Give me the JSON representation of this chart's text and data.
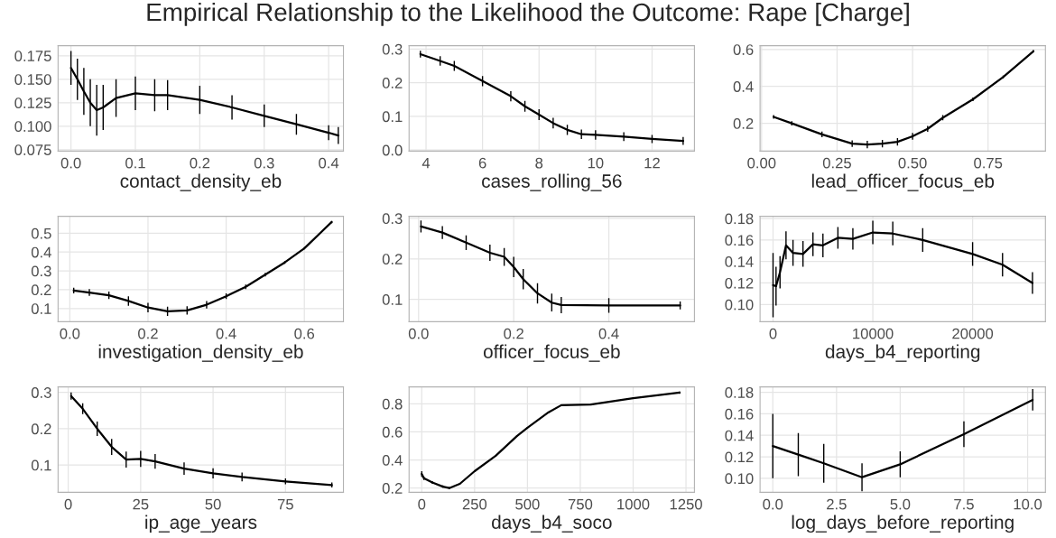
{
  "chart_data": [
    {
      "type": "line",
      "title": "Empirical Relationship to the Likelihood the Outcome: Rape [Charge]",
      "xlabel": "contact_density_eb",
      "grid": true,
      "xlim": [
        -0.02,
        0.423
      ],
      "ylim": [
        0.0735,
        0.1857
      ],
      "xticks": [
        {
          "value": 0,
          "label": "0.0"
        },
        0.1,
        0.2,
        0.3,
        0.4
      ],
      "yticks": [
        0.075,
        {
          "value": 0.1,
          "label": "0.100"
        },
        0.125,
        {
          "value": 0.15,
          "label": "0.150"
        },
        0.175
      ],
      "series": [
        {
          "color": "#000000",
          "x": [
            0,
            0.01,
            0.02,
            0.03,
            0.04,
            0.05,
            0.07,
            0.1,
            0.13,
            0.15,
            0.2,
            0.25,
            0.3,
            0.35,
            0.4,
            0.415
          ],
          "values": [
            0.162,
            0.15,
            0.137,
            0.125,
            0.117,
            0.12,
            0.13,
            0.135,
            0.133,
            0.133,
            0.128,
            0.12,
            0.111,
            0.102,
            0.093,
            0.09
          ],
          "errors": [
            0.018,
            0.022,
            0.025,
            0.025,
            0.027,
            0.024,
            0.02,
            0.018,
            0.017,
            0.016,
            0.015,
            0.013,
            0.012,
            0.011,
            0.008,
            0.009
          ]
        }
      ]
    },
    {
      "type": "line",
      "xlabel": "cases_rolling_56",
      "grid": true,
      "xlim": [
        3.4,
        13.5
      ],
      "ylim": [
        -0.003,
        0.31
      ],
      "xticks": [
        4,
        6,
        8,
        10,
        12
      ],
      "yticks": [
        {
          "value": 0,
          "label": "0.0"
        },
        0.1,
        0.2,
        0.3
      ],
      "series": [
        {
          "color": "#000000",
          "x": [
            3.8,
            4.5,
            5,
            6,
            7,
            7.5,
            8,
            8.5,
            9,
            9.5,
            10,
            11,
            12,
            13.1
          ],
          "values": [
            0.285,
            0.265,
            0.25,
            0.205,
            0.16,
            0.13,
            0.105,
            0.08,
            0.06,
            0.047,
            0.045,
            0.04,
            0.033,
            0.027
          ],
          "errors": [
            0.01,
            0.014,
            0.015,
            0.015,
            0.015,
            0.016,
            0.016,
            0.016,
            0.015,
            0.014,
            0.014,
            0.013,
            0.012,
            0.012
          ]
        }
      ]
    },
    {
      "type": "line",
      "xlabel": "lead_officer_focus_eb",
      "grid": true,
      "xlim": [
        -0.005,
        0.94
      ],
      "ylim": [
        0.05,
        0.62
      ],
      "xticks": [
        {
          "value": 0,
          "label": "0.00"
        },
        0.25,
        {
          "value": 0.5,
          "label": "0.50"
        },
        0.75
      ],
      "yticks": [
        0.2,
        0.4,
        0.6
      ],
      "series": [
        {
          "color": "#000000",
          "x": [
            0.04,
            0.1,
            0.2,
            0.3,
            0.35,
            0.4,
            0.45,
            0.5,
            0.55,
            0.6,
            0.7,
            0.8,
            0.9
          ],
          "values": [
            0.235,
            0.2,
            0.14,
            0.09,
            0.085,
            0.09,
            0.1,
            0.13,
            0.17,
            0.23,
            0.33,
            0.45,
            0.59
          ],
          "errors": [
            0.01,
            0.012,
            0.015,
            0.018,
            0.02,
            0.02,
            0.02,
            0.018,
            0.016,
            0.014,
            0.01,
            0.008,
            0.006
          ]
        }
      ]
    },
    {
      "type": "line",
      "xlabel": "investigation_density_eb",
      "grid": true,
      "xlim": [
        -0.03,
        0.7
      ],
      "ylim": [
        0.03,
        0.59
      ],
      "xticks": [
        {
          "value": 0,
          "label": "0.0"
        },
        0.2,
        0.4,
        0.6
      ],
      "yticks": [
        0.1,
        0.2,
        0.3,
        0.4,
        0.5
      ],
      "series": [
        {
          "color": "#000000",
          "x": [
            0.01,
            0.05,
            0.1,
            0.15,
            0.2,
            0.25,
            0.3,
            0.35,
            0.4,
            0.45,
            0.5,
            0.55,
            0.6,
            0.67
          ],
          "values": [
            0.195,
            0.185,
            0.17,
            0.14,
            0.105,
            0.085,
            0.09,
            0.12,
            0.165,
            0.215,
            0.28,
            0.345,
            0.42,
            0.56
          ],
          "errors": [
            0.015,
            0.018,
            0.02,
            0.025,
            0.025,
            0.025,
            0.022,
            0.02,
            0.015,
            0.012,
            0.01,
            0.008,
            0.006,
            0.006
          ]
        }
      ]
    },
    {
      "type": "line",
      "xlabel": "officer_focus_eb",
      "grid": true,
      "xlim": [
        -0.02,
        0.58
      ],
      "ylim": [
        0.045,
        0.305
      ],
      "xticks": [
        {
          "value": 0,
          "label": "0.0"
        },
        0.2,
        0.4
      ],
      "yticks": [
        0.1,
        0.2,
        0.3
      ],
      "series": [
        {
          "color": "#000000",
          "x": [
            0.005,
            0.05,
            0.1,
            0.15,
            0.18,
            0.2,
            0.22,
            0.25,
            0.28,
            0.3,
            0.4,
            0.55
          ],
          "values": [
            0.28,
            0.265,
            0.24,
            0.215,
            0.205,
            0.18,
            0.15,
            0.115,
            0.092,
            0.086,
            0.085,
            0.085
          ],
          "errors": [
            0.015,
            0.016,
            0.018,
            0.02,
            0.022,
            0.025,
            0.025,
            0.025,
            0.022,
            0.02,
            0.018,
            0.01
          ]
        }
      ]
    },
    {
      "type": "line",
      "xlabel": "days_b4_reporting",
      "grid": true,
      "xlim": [
        -1300,
        27300
      ],
      "ylim": [
        0.084,
        0.182
      ],
      "xticks": [
        0,
        10000,
        20000
      ],
      "yticks": [
        {
          "value": 0.1,
          "label": "0.10"
        },
        0.12,
        0.14,
        0.16,
        0.18
      ],
      "series": [
        {
          "color": "#000000",
          "x": [
            0,
            300,
            700,
            1300,
            2000,
            3000,
            4000,
            5000,
            6500,
            8000,
            10000,
            12000,
            15000,
            20000,
            23000,
            26000
          ],
          "values": [
            0.118,
            0.117,
            0.13,
            0.155,
            0.148,
            0.147,
            0.156,
            0.155,
            0.162,
            0.161,
            0.167,
            0.166,
            0.16,
            0.147,
            0.137,
            0.12
          ],
          "errors": [
            0.03,
            0.018,
            0.015,
            0.013,
            0.012,
            0.012,
            0.011,
            0.011,
            0.01,
            0.01,
            0.011,
            0.011,
            0.011,
            0.011,
            0.011,
            0.01
          ]
        }
      ]
    },
    {
      "type": "line",
      "xlabel": "ip_age_years",
      "grid": true,
      "xlim": [
        -3.5,
        95
      ],
      "ylim": [
        0.025,
        0.315
      ],
      "xticks": [
        0,
        25,
        50,
        75
      ],
      "yticks": [
        0.1,
        0.2,
        0.3
      ],
      "series": [
        {
          "color": "#000000",
          "x": [
            1,
            5,
            10,
            15,
            20,
            25,
            30,
            40,
            50,
            60,
            75,
            91
          ],
          "values": [
            0.29,
            0.255,
            0.2,
            0.15,
            0.115,
            0.117,
            0.11,
            0.09,
            0.077,
            0.067,
            0.055,
            0.045
          ],
          "errors": [
            0.01,
            0.015,
            0.02,
            0.022,
            0.022,
            0.022,
            0.02,
            0.017,
            0.014,
            0.012,
            0.008,
            0.007
          ]
        }
      ]
    },
    {
      "type": "line",
      "xlabel": "days_b4_soco",
      "grid": true,
      "xlim": [
        -60,
        1290
      ],
      "ylim": [
        0.17,
        0.92
      ],
      "xticks": [
        0,
        250,
        500,
        750,
        1000,
        1250
      ],
      "yticks": [
        0.2,
        0.4,
        0.6,
        0.8
      ],
      "series": [
        {
          "color": "#000000",
          "x": [
            0,
            10,
            50,
            100,
            130,
            180,
            250,
            350,
            450,
            500,
            600,
            660,
            800,
            1000,
            1220
          ],
          "values": [
            0.3,
            0.27,
            0.24,
            0.21,
            0.2,
            0.23,
            0.32,
            0.43,
            0.57,
            0.63,
            0.74,
            0.79,
            0.795,
            0.84,
            0.88
          ],
          "errors": [
            0.02,
            0.012,
            0.01,
            0.008,
            0.008,
            0.006,
            0.005,
            0.005,
            0.005,
            0.005,
            0.005,
            0.005,
            0.005,
            0.005,
            0.008
          ]
        }
      ]
    },
    {
      "type": "line",
      "xlabel": "log_days_before_reporting",
      "grid": true,
      "xlim": [
        -0.5,
        10.7
      ],
      "ylim": [
        0.087,
        0.185
      ],
      "xticks": [
        {
          "value": 0,
          "label": "0.0"
        },
        2.5,
        {
          "value": 5,
          "label": "5.0"
        },
        7.5,
        {
          "value": 10,
          "label": "10.0"
        }
      ],
      "yticks": [
        {
          "value": 0.1,
          "label": "0.10"
        },
        0.12,
        0.14,
        0.16,
        0.18
      ],
      "series": [
        {
          "color": "#000000",
          "x": [
            0,
            1,
            2,
            3.5,
            5,
            7.5,
            10.2
          ],
          "values": [
            0.13,
            0.122,
            0.114,
            0.101,
            0.113,
            0.141,
            0.173
          ],
          "errors": [
            0.03,
            0.02,
            0.018,
            0.013,
            0.012,
            0.012,
            0.01
          ]
        }
      ]
    }
  ]
}
